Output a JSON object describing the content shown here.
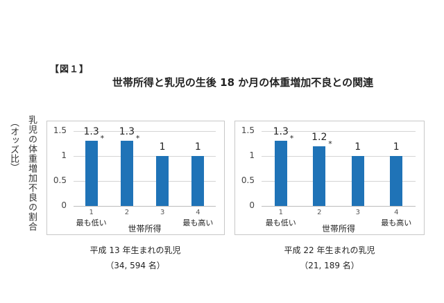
{
  "figure_label": "【図１】",
  "title": "世帯所得と乳児の生後 18 か月の体重増加不良との関連",
  "y_label_main": "乳児の体重増加不良の割合",
  "y_label_sub": "（オッズ比）",
  "chart_data": [
    {
      "type": "bar",
      "title": "平成 13 年生まれの乳児",
      "subtitle": "（34, 594 名）",
      "categories": [
        "1",
        "2",
        "3",
        "4"
      ],
      "category_sublabels": [
        "最も低い",
        "",
        "",
        "最も高い"
      ],
      "values": [
        1.3,
        1.3,
        1,
        1
      ],
      "value_labels": [
        "1.3",
        "1.3",
        "1",
        "1"
      ],
      "significance": [
        "*",
        "*",
        "",
        ""
      ],
      "xlabel": "世帯所得",
      "ylabel": "乳児の体重増加不良の割合（オッズ比）",
      "ylim": [
        0,
        1.5
      ],
      "yticks": [
        "1.5",
        "1",
        "0.5",
        "0"
      ],
      "grid": true,
      "bar_color": "#1f73b7"
    },
    {
      "type": "bar",
      "title": "平成 22 年生まれの乳児",
      "subtitle": "（21, 189 名）",
      "categories": [
        "1",
        "2",
        "3",
        "4"
      ],
      "category_sublabels": [
        "最も低い",
        "",
        "",
        "最も高い"
      ],
      "values": [
        1.3,
        1.2,
        1,
        1
      ],
      "value_labels": [
        "1.3",
        "1.2",
        "1",
        "1"
      ],
      "significance": [
        "*",
        "*",
        "",
        ""
      ],
      "xlabel": "世帯所得",
      "ylabel": "乳児の体重増加不良の割合（オッズ比）",
      "ylim": [
        0,
        1.5
      ],
      "yticks": [
        "1.5",
        "1",
        "0.5",
        "0"
      ],
      "grid": true,
      "bar_color": "#1f73b7"
    }
  ]
}
